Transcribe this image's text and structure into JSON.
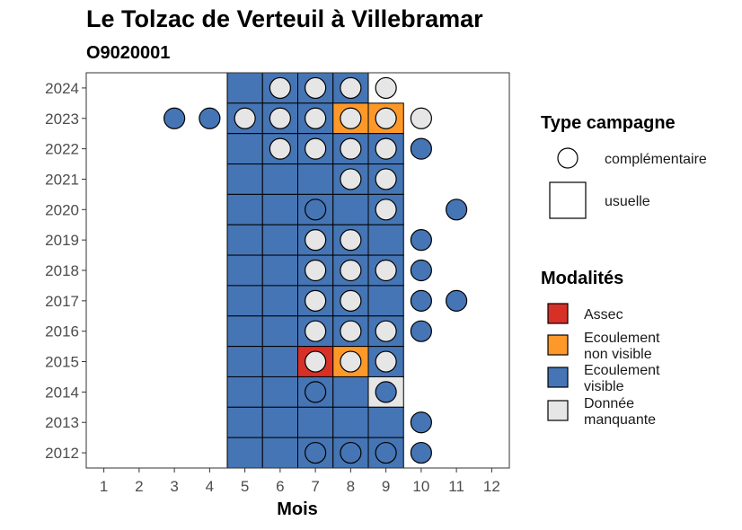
{
  "chart_data": {
    "type": "heatmap",
    "title": "Le Tolzac de Verteuil à Villebramar",
    "subtitle": "O9020001",
    "xlabel": "Mois",
    "ylabel": "",
    "x_ticks": [
      1,
      2,
      3,
      4,
      5,
      6,
      7,
      8,
      9,
      10,
      11,
      12
    ],
    "y_ticks": [
      2012,
      2013,
      2014,
      2015,
      2016,
      2017,
      2018,
      2019,
      2020,
      2021,
      2022,
      2023,
      2024
    ],
    "xlim": [
      0.5,
      12.5
    ],
    "ylim": [
      2011.5,
      2024.5
    ],
    "colors": {
      "Assec": "#d73027",
      "Ecoulement non visible": "#fe9929",
      "Ecoulement visible": "#4575b4",
      "Donnée manquante": "#e6e6e6"
    },
    "legend_type": {
      "title": "Type campagne",
      "items": [
        {
          "key": "complementaire",
          "label": "complémentaire",
          "shape": "circle"
        },
        {
          "key": "usuelle",
          "label": "usuelle",
          "shape": "square"
        }
      ]
    },
    "legend_modalites": {
      "title": "Modalités",
      "items": [
        {
          "key": "Assec",
          "lines": [
            "Assec"
          ]
        },
        {
          "key": "Ecoulement non visible",
          "lines": [
            "Ecoulement",
            "non visible"
          ]
        },
        {
          "key": "Ecoulement visible",
          "lines": [
            "Ecoulement",
            "visible"
          ]
        },
        {
          "key": "Donnée manquante",
          "lines": [
            "Donnée",
            "manquante"
          ]
        }
      ]
    },
    "usuelle": [
      {
        "year": 2024,
        "month": 5,
        "value": "Ecoulement visible"
      },
      {
        "year": 2024,
        "month": 6,
        "value": "Ecoulement visible"
      },
      {
        "year": 2024,
        "month": 7,
        "value": "Ecoulement visible"
      },
      {
        "year": 2024,
        "month": 8,
        "value": "Ecoulement visible"
      },
      {
        "year": 2023,
        "month": 5,
        "value": "Ecoulement visible"
      },
      {
        "year": 2023,
        "month": 6,
        "value": "Ecoulement visible"
      },
      {
        "year": 2023,
        "month": 7,
        "value": "Ecoulement visible"
      },
      {
        "year": 2023,
        "month": 8,
        "value": "Ecoulement non visible"
      },
      {
        "year": 2023,
        "month": 9,
        "value": "Ecoulement non visible"
      },
      {
        "year": 2022,
        "month": 5,
        "value": "Ecoulement visible"
      },
      {
        "year": 2022,
        "month": 6,
        "value": "Ecoulement visible"
      },
      {
        "year": 2022,
        "month": 7,
        "value": "Ecoulement visible"
      },
      {
        "year": 2022,
        "month": 8,
        "value": "Ecoulement visible"
      },
      {
        "year": 2022,
        "month": 9,
        "value": "Ecoulement visible"
      },
      {
        "year": 2021,
        "month": 5,
        "value": "Ecoulement visible"
      },
      {
        "year": 2021,
        "month": 6,
        "value": "Ecoulement visible"
      },
      {
        "year": 2021,
        "month": 7,
        "value": "Ecoulement visible"
      },
      {
        "year": 2021,
        "month": 8,
        "value": "Ecoulement visible"
      },
      {
        "year": 2021,
        "month": 9,
        "value": "Ecoulement visible"
      },
      {
        "year": 2020,
        "month": 5,
        "value": "Ecoulement visible"
      },
      {
        "year": 2020,
        "month": 6,
        "value": "Ecoulement visible"
      },
      {
        "year": 2020,
        "month": 7,
        "value": "Ecoulement visible"
      },
      {
        "year": 2020,
        "month": 8,
        "value": "Ecoulement visible"
      },
      {
        "year": 2020,
        "month": 9,
        "value": "Ecoulement visible"
      },
      {
        "year": 2019,
        "month": 5,
        "value": "Ecoulement visible"
      },
      {
        "year": 2019,
        "month": 6,
        "value": "Ecoulement visible"
      },
      {
        "year": 2019,
        "month": 7,
        "value": "Ecoulement visible"
      },
      {
        "year": 2019,
        "month": 8,
        "value": "Ecoulement visible"
      },
      {
        "year": 2019,
        "month": 9,
        "value": "Ecoulement visible"
      },
      {
        "year": 2018,
        "month": 5,
        "value": "Ecoulement visible"
      },
      {
        "year": 2018,
        "month": 6,
        "value": "Ecoulement visible"
      },
      {
        "year": 2018,
        "month": 7,
        "value": "Ecoulement visible"
      },
      {
        "year": 2018,
        "month": 8,
        "value": "Ecoulement visible"
      },
      {
        "year": 2018,
        "month": 9,
        "value": "Ecoulement visible"
      },
      {
        "year": 2017,
        "month": 5,
        "value": "Ecoulement visible"
      },
      {
        "year": 2017,
        "month": 6,
        "value": "Ecoulement visible"
      },
      {
        "year": 2017,
        "month": 7,
        "value": "Ecoulement visible"
      },
      {
        "year": 2017,
        "month": 8,
        "value": "Ecoulement visible"
      },
      {
        "year": 2017,
        "month": 9,
        "value": "Ecoulement visible"
      },
      {
        "year": 2016,
        "month": 5,
        "value": "Ecoulement visible"
      },
      {
        "year": 2016,
        "month": 6,
        "value": "Ecoulement visible"
      },
      {
        "year": 2016,
        "month": 7,
        "value": "Ecoulement visible"
      },
      {
        "year": 2016,
        "month": 8,
        "value": "Ecoulement visible"
      },
      {
        "year": 2016,
        "month": 9,
        "value": "Ecoulement visible"
      },
      {
        "year": 2015,
        "month": 5,
        "value": "Ecoulement visible"
      },
      {
        "year": 2015,
        "month": 6,
        "value": "Ecoulement visible"
      },
      {
        "year": 2015,
        "month": 7,
        "value": "Assec"
      },
      {
        "year": 2015,
        "month": 8,
        "value": "Ecoulement non visible"
      },
      {
        "year": 2015,
        "month": 9,
        "value": "Ecoulement visible"
      },
      {
        "year": 2014,
        "month": 5,
        "value": "Ecoulement visible"
      },
      {
        "year": 2014,
        "month": 6,
        "value": "Ecoulement visible"
      },
      {
        "year": 2014,
        "month": 7,
        "value": "Ecoulement visible"
      },
      {
        "year": 2014,
        "month": 8,
        "value": "Ecoulement visible"
      },
      {
        "year": 2014,
        "month": 9,
        "value": "Donnée manquante"
      },
      {
        "year": 2013,
        "month": 5,
        "value": "Ecoulement visible"
      },
      {
        "year": 2013,
        "month": 6,
        "value": "Ecoulement visible"
      },
      {
        "year": 2013,
        "month": 7,
        "value": "Ecoulement visible"
      },
      {
        "year": 2013,
        "month": 8,
        "value": "Ecoulement visible"
      },
      {
        "year": 2013,
        "month": 9,
        "value": "Ecoulement visible"
      },
      {
        "year": 2012,
        "month": 5,
        "value": "Ecoulement visible"
      },
      {
        "year": 2012,
        "month": 6,
        "value": "Ecoulement visible"
      },
      {
        "year": 2012,
        "month": 7,
        "value": "Ecoulement visible"
      },
      {
        "year": 2012,
        "month": 8,
        "value": "Ecoulement visible"
      },
      {
        "year": 2012,
        "month": 9,
        "value": "Ecoulement visible"
      }
    ],
    "complementaire": [
      {
        "year": 2024,
        "month": 6,
        "value": "Donnée manquante"
      },
      {
        "year": 2024,
        "month": 7,
        "value": "Donnée manquante"
      },
      {
        "year": 2024,
        "month": 8,
        "value": "Donnée manquante"
      },
      {
        "year": 2024,
        "month": 9,
        "value": "Donnée manquante"
      },
      {
        "year": 2023,
        "month": 3,
        "value": "Ecoulement visible"
      },
      {
        "year": 2023,
        "month": 4,
        "value": "Ecoulement visible"
      },
      {
        "year": 2023,
        "month": 5,
        "value": "Donnée manquante"
      },
      {
        "year": 2023,
        "month": 6,
        "value": "Donnée manquante"
      },
      {
        "year": 2023,
        "month": 7,
        "value": "Donnée manquante"
      },
      {
        "year": 2023,
        "month": 8,
        "value": "Donnée manquante"
      },
      {
        "year": 2023,
        "month": 9,
        "value": "Donnée manquante"
      },
      {
        "year": 2023,
        "month": 10,
        "value": "Donnée manquante"
      },
      {
        "year": 2022,
        "month": 6,
        "value": "Donnée manquante"
      },
      {
        "year": 2022,
        "month": 7,
        "value": "Donnée manquante"
      },
      {
        "year": 2022,
        "month": 8,
        "value": "Donnée manquante"
      },
      {
        "year": 2022,
        "month": 9,
        "value": "Donnée manquante"
      },
      {
        "year": 2022,
        "month": 10,
        "value": "Ecoulement visible"
      },
      {
        "year": 2021,
        "month": 8,
        "value": "Donnée manquante"
      },
      {
        "year": 2021,
        "month": 9,
        "value": "Donnée manquante"
      },
      {
        "year": 2020,
        "month": 7,
        "value": "Ecoulement visible"
      },
      {
        "year": 2020,
        "month": 9,
        "value": "Donnée manquante"
      },
      {
        "year": 2020,
        "month": 11,
        "value": "Ecoulement visible"
      },
      {
        "year": 2019,
        "month": 7,
        "value": "Donnée manquante"
      },
      {
        "year": 2019,
        "month": 8,
        "value": "Donnée manquante"
      },
      {
        "year": 2019,
        "month": 10,
        "value": "Ecoulement visible"
      },
      {
        "year": 2018,
        "month": 7,
        "value": "Donnée manquante"
      },
      {
        "year": 2018,
        "month": 8,
        "value": "Donnée manquante"
      },
      {
        "year": 2018,
        "month": 9,
        "value": "Donnée manquante"
      },
      {
        "year": 2018,
        "month": 10,
        "value": "Ecoulement visible"
      },
      {
        "year": 2017,
        "month": 7,
        "value": "Donnée manquante"
      },
      {
        "year": 2017,
        "month": 8,
        "value": "Donnée manquante"
      },
      {
        "year": 2017,
        "month": 10,
        "value": "Ecoulement visible"
      },
      {
        "year": 2017,
        "month": 11,
        "value": "Ecoulement visible"
      },
      {
        "year": 2016,
        "month": 7,
        "value": "Donnée manquante"
      },
      {
        "year": 2016,
        "month": 8,
        "value": "Donnée manquante"
      },
      {
        "year": 2016,
        "month": 9,
        "value": "Donnée manquante"
      },
      {
        "year": 2016,
        "month": 10,
        "value": "Ecoulement visible"
      },
      {
        "year": 2015,
        "month": 7,
        "value": "Donnée manquante"
      },
      {
        "year": 2015,
        "month": 8,
        "value": "Donnée manquante"
      },
      {
        "year": 2015,
        "month": 9,
        "value": "Donnée manquante"
      },
      {
        "year": 2014,
        "month": 7,
        "value": "Ecoulement visible"
      },
      {
        "year": 2014,
        "month": 9,
        "value": "Ecoulement visible"
      },
      {
        "year": 2013,
        "month": 10,
        "value": "Ecoulement visible"
      },
      {
        "year": 2012,
        "month": 7,
        "value": "Ecoulement visible"
      },
      {
        "year": 2012,
        "month": 8,
        "value": "Ecoulement visible"
      },
      {
        "year": 2012,
        "month": 9,
        "value": "Ecoulement visible"
      },
      {
        "year": 2012,
        "month": 10,
        "value": "Ecoulement visible"
      }
    ]
  }
}
